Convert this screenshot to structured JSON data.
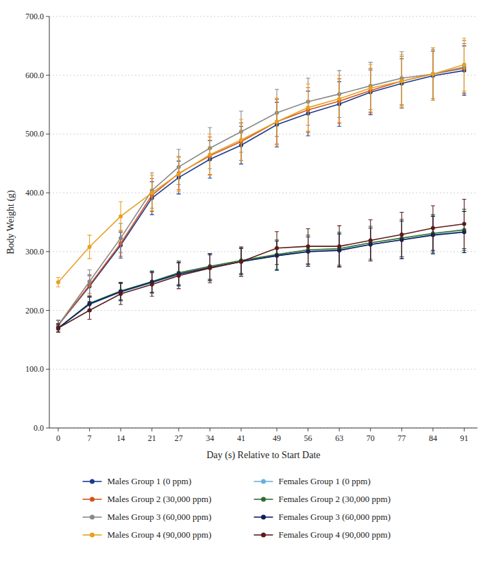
{
  "chart_data": {
    "type": "line",
    "x": [
      0,
      7,
      14,
      21,
      27,
      34,
      41,
      49,
      56,
      63,
      70,
      77,
      84,
      91
    ],
    "series": [
      {
        "name": "Males Group 1 (0 ppm)",
        "color": "#1a3a8c",
        "marker": "circle",
        "values": [
          175,
          241,
          311,
          391,
          426,
          457,
          481,
          516,
          535,
          551,
          571,
          586,
          599,
          608
        ],
        "errors": [
          8,
          18,
          22,
          28,
          28,
          32,
          32,
          38,
          38,
          38,
          38,
          42,
          42,
          42
        ]
      },
      {
        "name": "Males Group 2 (30,000 ppm)",
        "color": "#d4521a",
        "marker": "circle",
        "values": [
          175,
          243,
          314,
          396,
          433,
          463,
          487,
          521,
          541,
          556,
          574,
          590,
          602,
          612
        ],
        "errors": [
          8,
          18,
          22,
          28,
          28,
          32,
          32,
          38,
          38,
          38,
          38,
          42,
          42,
          42
        ]
      },
      {
        "name": "Males Group 3 (60,000 ppm)",
        "color": "#888888",
        "marker": "circle",
        "values": [
          175,
          249,
          323,
          404,
          444,
          476,
          504,
          536,
          555,
          568,
          582,
          595,
          602,
          614
        ],
        "errors": [
          8,
          20,
          25,
          30,
          30,
          35,
          35,
          40,
          40,
          40,
          40,
          45,
          45,
          45
        ]
      },
      {
        "name": "Males Group 4 (90,000 ppm)",
        "color": "#e8a020",
        "marker": "circle",
        "values": [
          248,
          308,
          360,
          400,
          432,
          465,
          490,
          521,
          545,
          560,
          578,
          590,
          602,
          618
        ],
        "errors": [
          8,
          20,
          25,
          30,
          30,
          35,
          35,
          40,
          40,
          40,
          40,
          45,
          45,
          45
        ]
      },
      {
        "name": "Females Group 1 (0 ppm)",
        "color": "#6ab0d8",
        "marker": "circle",
        "values": [
          170,
          210,
          231,
          247,
          261,
          272,
          283,
          293,
          300,
          303,
          312,
          320,
          329,
          334
        ],
        "errors": [
          7,
          12,
          15,
          18,
          20,
          22,
          22,
          25,
          25,
          28,
          28,
          32,
          32,
          35
        ]
      },
      {
        "name": "Females Group 2 (30,000 ppm)",
        "color": "#2d6e2d",
        "marker": "circle",
        "values": [
          170,
          212,
          233,
          249,
          264,
          275,
          285,
          295,
          303,
          305,
          315,
          323,
          331,
          337
        ],
        "errors": [
          7,
          12,
          15,
          18,
          20,
          22,
          22,
          25,
          25,
          28,
          28,
          32,
          32,
          35
        ]
      },
      {
        "name": "Females Group 3 (60,000 ppm)",
        "color": "#0d1f5c",
        "marker": "circle",
        "values": [
          170,
          211,
          232,
          248,
          262,
          273,
          283,
          293,
          300,
          302,
          312,
          320,
          328,
          333
        ],
        "errors": [
          7,
          12,
          15,
          18,
          20,
          22,
          22,
          25,
          25,
          28,
          28,
          32,
          32,
          35
        ]
      },
      {
        "name": "Females Group 4 (90,000 ppm)",
        "color": "#5c1a1a",
        "marker": "circle",
        "values": [
          170,
          200,
          228,
          244,
          259,
          272,
          283,
          306,
          309,
          309,
          319,
          329,
          340,
          347
        ],
        "errors": [
          7,
          15,
          18,
          20,
          22,
          25,
          25,
          28,
          30,
          35,
          35,
          38,
          38,
          42
        ]
      }
    ],
    "x_label": "Day (s) Relative to Start Date",
    "y_label": "Body Weight (g)",
    "xlim": [
      -2,
      94
    ],
    "xticks": [
      0,
      7,
      14,
      21,
      27,
      34,
      41,
      49,
      56,
      63,
      70,
      77,
      84,
      91
    ],
    "ylim": [
      0,
      700
    ],
    "yticks": [
      {
        "value": 0,
        "label": "0.0"
      },
      {
        "value": 100,
        "label": "100.0"
      },
      {
        "value": 200,
        "label": "200.0"
      },
      {
        "value": 300,
        "label": "300.0"
      },
      {
        "value": 400,
        "label": "400.0"
      },
      {
        "value": 500,
        "label": "500.0"
      },
      {
        "value": 600,
        "label": "600.0"
      },
      {
        "value": 700,
        "label": "700.0"
      }
    ],
    "grid": "y",
    "legend": "bottom"
  }
}
